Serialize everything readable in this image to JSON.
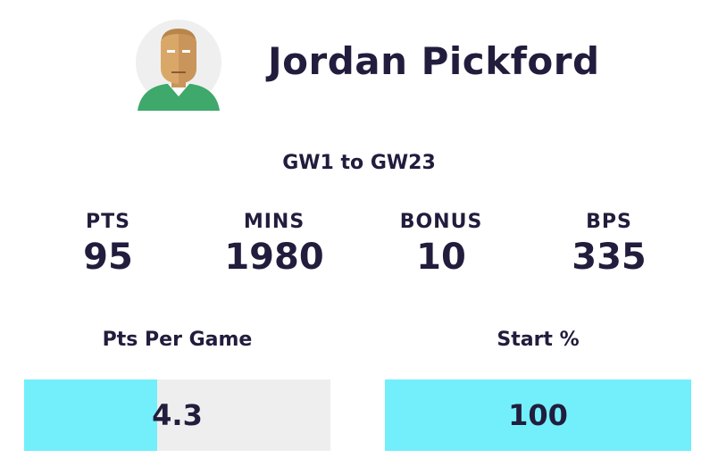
{
  "player": {
    "name": "Jordan Pickford"
  },
  "range": "GW1 to GW23",
  "stats": [
    {
      "label": "PTS",
      "value": 95
    },
    {
      "label": "MINS",
      "value": 1980
    },
    {
      "label": "BONUS",
      "value": 10
    },
    {
      "label": "BPS",
      "value": 335
    }
  ],
  "bars": [
    {
      "label": "Pts Per Game",
      "value": 4.3
    },
    {
      "label": "Start %",
      "value": 100
    }
  ]
}
